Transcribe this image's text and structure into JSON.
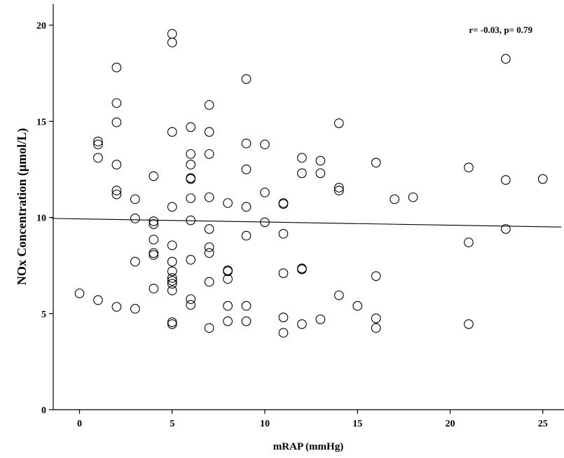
{
  "chart_data": {
    "type": "scatter",
    "xlabel": "mRAP (mmHg)",
    "ylabel": "NOx Concentration (μmol/L)",
    "annotation": "r= -0.03, p= 0.79",
    "xlim": [
      -1.5,
      26
    ],
    "ylim": [
      0,
      21
    ],
    "x_ticks": [
      0,
      5,
      10,
      15,
      20,
      25
    ],
    "y_ticks": [
      0,
      5,
      10,
      15,
      20
    ],
    "grid": false,
    "fit_line": {
      "x": [
        -1.5,
        26
      ],
      "y": [
        9.95,
        9.5
      ]
    },
    "points": [
      [
        0,
        6.05
      ],
      [
        1,
        13.95
      ],
      [
        1,
        13.8
      ],
      [
        1,
        13.1
      ],
      [
        1,
        5.7
      ],
      [
        2,
        17.8
      ],
      [
        2,
        15.95
      ],
      [
        2,
        14.95
      ],
      [
        2,
        12.75
      ],
      [
        2,
        11.4
      ],
      [
        2,
        11.2
      ],
      [
        2,
        5.35
      ],
      [
        3,
        10.95
      ],
      [
        3,
        9.95
      ],
      [
        3,
        7.7
      ],
      [
        3,
        5.25
      ],
      [
        4,
        12.15
      ],
      [
        4,
        9.8
      ],
      [
        4,
        9.65
      ],
      [
        4,
        8.85
      ],
      [
        4,
        8.15
      ],
      [
        4,
        8.05
      ],
      [
        4,
        6.3
      ],
      [
        5,
        19.55
      ],
      [
        5,
        19.1
      ],
      [
        5,
        14.45
      ],
      [
        5,
        10.55
      ],
      [
        5,
        8.55
      ],
      [
        5,
        7.7
      ],
      [
        5,
        7.2
      ],
      [
        5,
        6.85
      ],
      [
        5,
        6.7
      ],
      [
        5,
        6.55
      ],
      [
        5,
        6.2
      ],
      [
        5,
        4.55
      ],
      [
        5,
        4.45
      ],
      [
        6,
        14.7
      ],
      [
        6,
        13.3
      ],
      [
        6,
        12.75
      ],
      [
        6,
        12.05
      ],
      [
        6,
        12.0
      ],
      [
        6,
        11.0
      ],
      [
        6,
        9.85
      ],
      [
        6,
        7.8
      ],
      [
        6,
        5.75
      ],
      [
        6,
        5.45
      ],
      [
        7,
        15.85
      ],
      [
        7,
        14.45
      ],
      [
        7,
        13.3
      ],
      [
        7,
        11.05
      ],
      [
        7,
        9.4
      ],
      [
        7,
        8.45
      ],
      [
        7,
        8.15
      ],
      [
        7,
        6.65
      ],
      [
        7,
        4.25
      ],
      [
        8,
        10.75
      ],
      [
        8,
        7.25
      ],
      [
        8,
        7.2
      ],
      [
        8,
        6.8
      ],
      [
        8,
        5.4
      ],
      [
        8,
        4.6
      ],
      [
        9,
        17.2
      ],
      [
        9,
        13.85
      ],
      [
        9,
        12.5
      ],
      [
        9,
        10.55
      ],
      [
        9,
        9.05
      ],
      [
        9,
        5.4
      ],
      [
        9,
        4.6
      ],
      [
        10,
        13.8
      ],
      [
        10,
        11.3
      ],
      [
        10,
        9.75
      ],
      [
        11,
        10.75
      ],
      [
        11,
        10.7
      ],
      [
        11,
        9.15
      ],
      [
        11,
        7.1
      ],
      [
        11,
        4.8
      ],
      [
        11,
        4.0
      ],
      [
        12,
        13.1
      ],
      [
        12,
        12.3
      ],
      [
        12,
        7.35
      ],
      [
        12,
        7.3
      ],
      [
        12,
        4.45
      ],
      [
        13,
        12.95
      ],
      [
        13,
        12.3
      ],
      [
        13,
        4.7
      ],
      [
        14,
        14.9
      ],
      [
        14,
        11.55
      ],
      [
        14,
        11.4
      ],
      [
        14,
        5.95
      ],
      [
        15,
        5.4
      ],
      [
        16,
        12.85
      ],
      [
        16,
        6.95
      ],
      [
        16,
        4.75
      ],
      [
        16,
        4.25
      ],
      [
        17,
        10.95
      ],
      [
        18,
        11.05
      ],
      [
        21,
        12.6
      ],
      [
        21,
        8.7
      ],
      [
        21,
        4.45
      ],
      [
        23,
        18.25
      ],
      [
        23,
        11.95
      ],
      [
        23,
        9.4
      ],
      [
        25,
        12.0
      ]
    ]
  }
}
